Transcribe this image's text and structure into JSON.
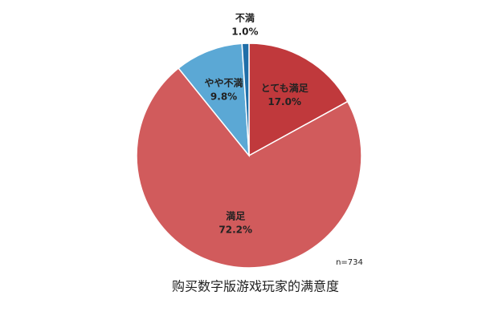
{
  "chart_data": {
    "type": "pie",
    "title": "购买数字版游戏玩家的满意度",
    "note": "n=734",
    "categories": [
      "とても満足",
      "満足",
      "やや不満",
      "不満"
    ],
    "values": [
      17.0,
      72.2,
      9.8,
      1.0
    ],
    "value_labels": [
      "17.0%",
      "72.2%",
      "9.8%",
      "1.0%"
    ],
    "colors": [
      "#c0393c",
      "#d15b5c",
      "#5ba8d5",
      "#1f6ea8"
    ]
  }
}
